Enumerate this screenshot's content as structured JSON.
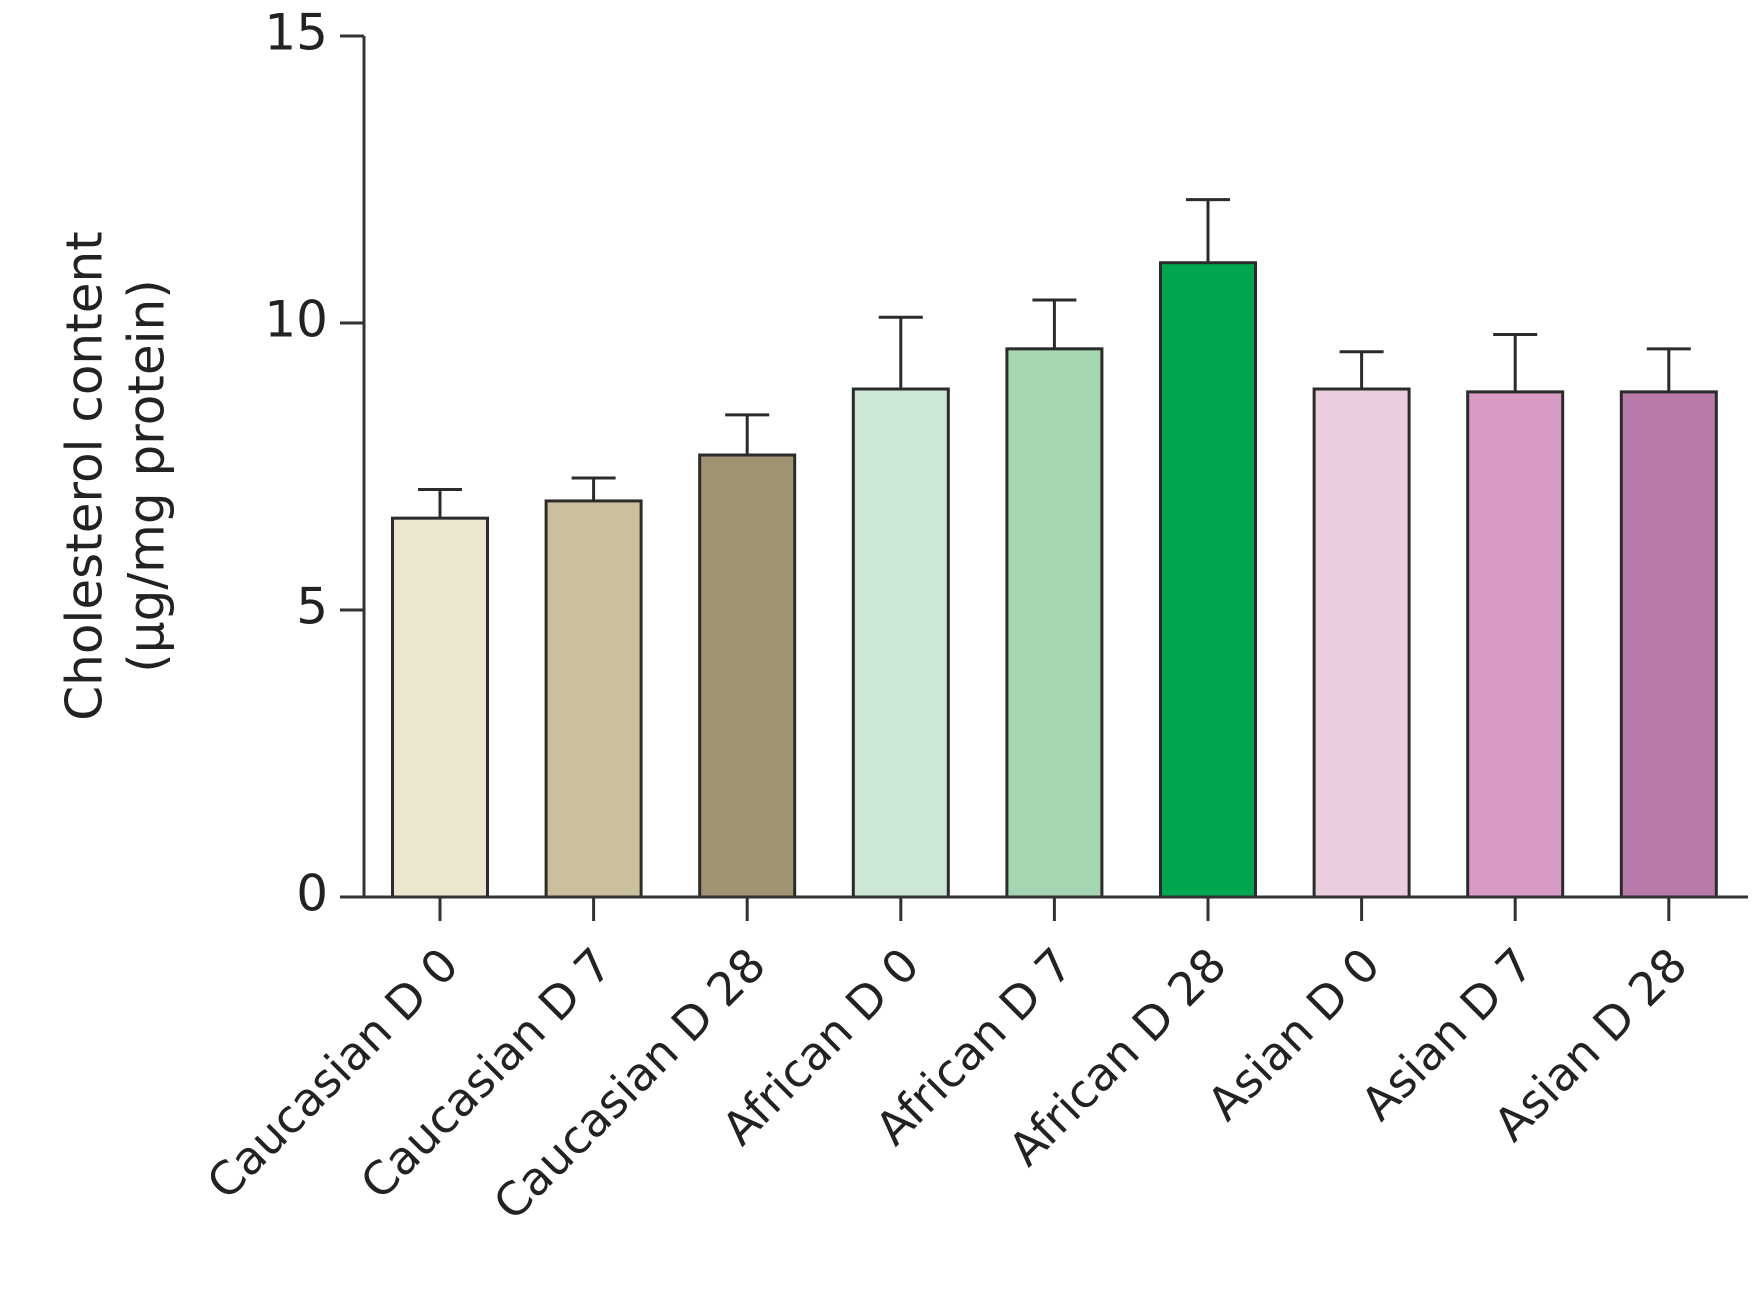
{
  "chart_data": {
    "type": "bar",
    "title": "",
    "xlabel": "",
    "ylabel_lines": [
      "Cholesterol content",
      "(μg/mg protein)"
    ],
    "ylim": [
      0,
      15
    ],
    "yticks": [
      0,
      5,
      10,
      15
    ],
    "grid": false,
    "categories": [
      "Caucasian D 0",
      "Caucasian D 7",
      "Caucasian D 28",
      "African D 0",
      "African D 7",
      "African D 28",
      "Asian D 0",
      "Asian D 7",
      "Asian D 28"
    ],
    "values": [
      6.6,
      6.9,
      7.7,
      8.85,
      9.55,
      11.05,
      8.85,
      8.8,
      8.8
    ],
    "error_upper": [
      0.5,
      0.4,
      0.7,
      1.25,
      0.85,
      1.1,
      0.65,
      1.0,
      0.75
    ],
    "colors": [
      "#ede6cf",
      "#cbc09d",
      "#a09372",
      "#cce8d4",
      "#a6d5b2",
      "#00a650",
      "#ebcde0",
      "#d89bc5",
      "#b87aa8"
    ]
  }
}
